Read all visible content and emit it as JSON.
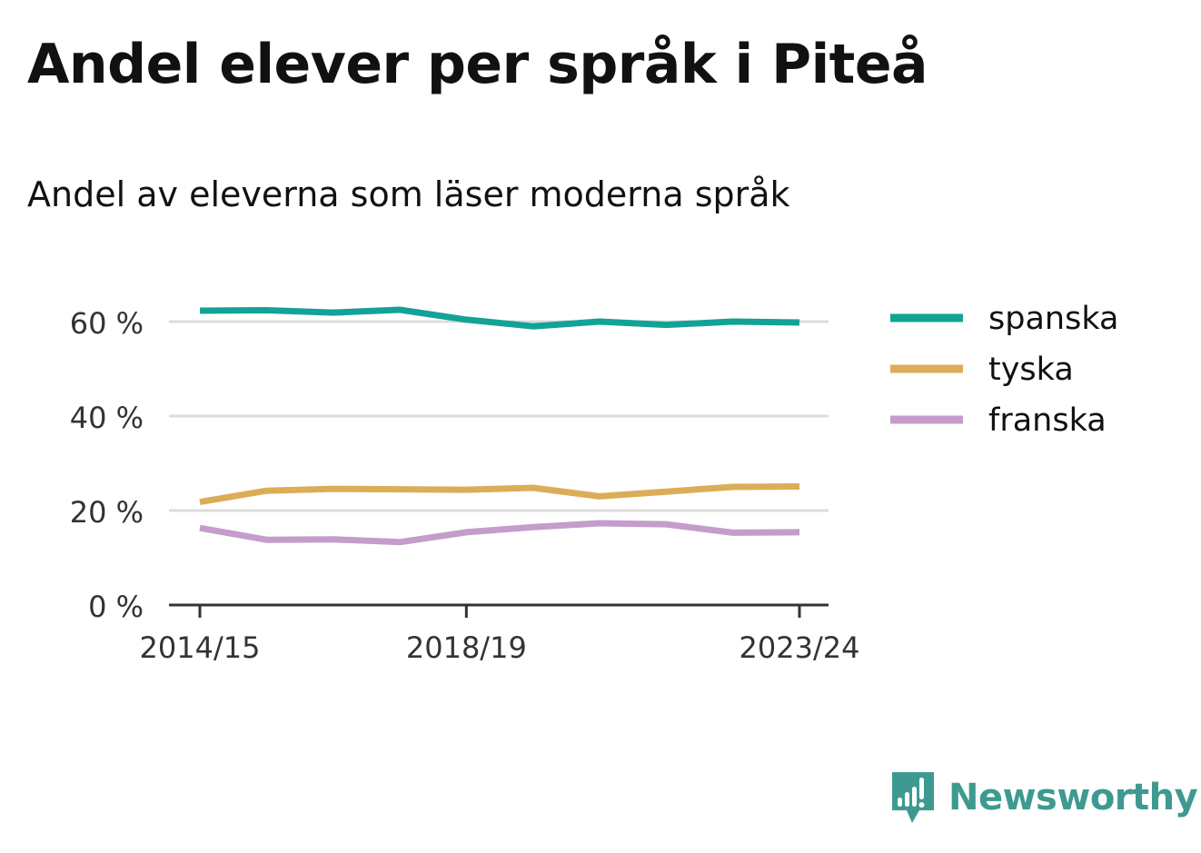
{
  "title": "Andel elever per språk i Piteå",
  "subtitle": "Andel av eleverna som läser moderna språk",
  "brand": "Newsworthy",
  "colors": {
    "spanska": "#12a396",
    "tyska": "#dcad57",
    "franska": "#c59ccc",
    "brand": "#3e9a90",
    "grid": "#dcdcdc",
    "axis": "#333333"
  },
  "chart_data": {
    "type": "line",
    "x": [
      "2014/15",
      "2015/16",
      "2016/17",
      "2017/18",
      "2018/19",
      "2019/20",
      "2020/21",
      "2021/22",
      "2022/23",
      "2023/24"
    ],
    "x_tick_labels": [
      "2014/15",
      "2018/19",
      "2023/24"
    ],
    "y_ticks": [
      0,
      20,
      40,
      60
    ],
    "y_tick_labels": [
      "0 %",
      "20 %",
      "40 %",
      "60 %"
    ],
    "ylim": [
      0,
      62
    ],
    "grid": true,
    "legend": "right",
    "series": [
      {
        "name": "spanska",
        "values": [
          62.3,
          62.4,
          61.9,
          62.5,
          60.4,
          59.0,
          60.0,
          59.3,
          60.0,
          59.8
        ]
      },
      {
        "name": "tyska",
        "values": [
          21.8,
          24.2,
          24.6,
          24.5,
          24.4,
          24.8,
          23.0,
          24.0,
          25.0,
          25.1
        ]
      },
      {
        "name": "franska",
        "values": [
          16.3,
          13.8,
          13.9,
          13.3,
          15.4,
          16.5,
          17.3,
          17.1,
          15.3,
          15.4
        ]
      }
    ]
  }
}
